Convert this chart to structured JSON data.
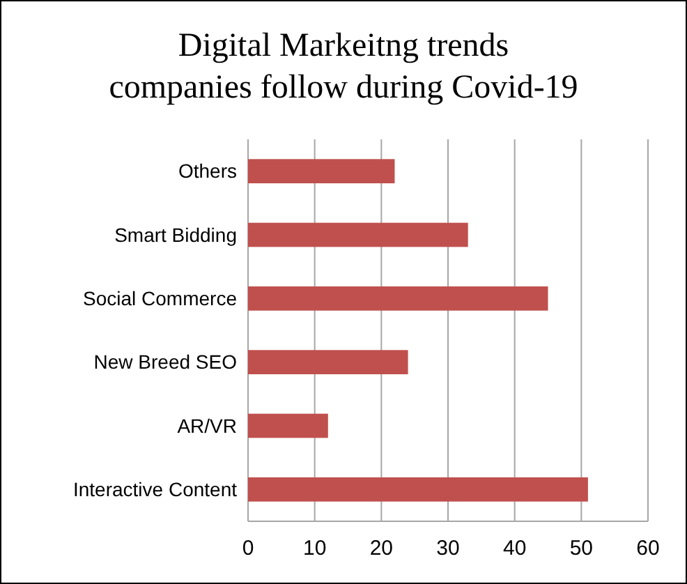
{
  "chart_data": {
    "type": "bar",
    "orientation": "horizontal",
    "title": "Digital Markeitng trends companies follow during Covid-19",
    "categories": [
      "Others",
      "Smart Bidding",
      "Social Commerce",
      "New Breed SEO",
      "AR/VR",
      "Interactive Content"
    ],
    "values": [
      22,
      33,
      45,
      24,
      12,
      51
    ],
    "color": "#c0504d",
    "xlim": [
      0,
      60
    ],
    "xticks": [
      0,
      10,
      20,
      30,
      40,
      50,
      60
    ],
    "grid": "x"
  }
}
